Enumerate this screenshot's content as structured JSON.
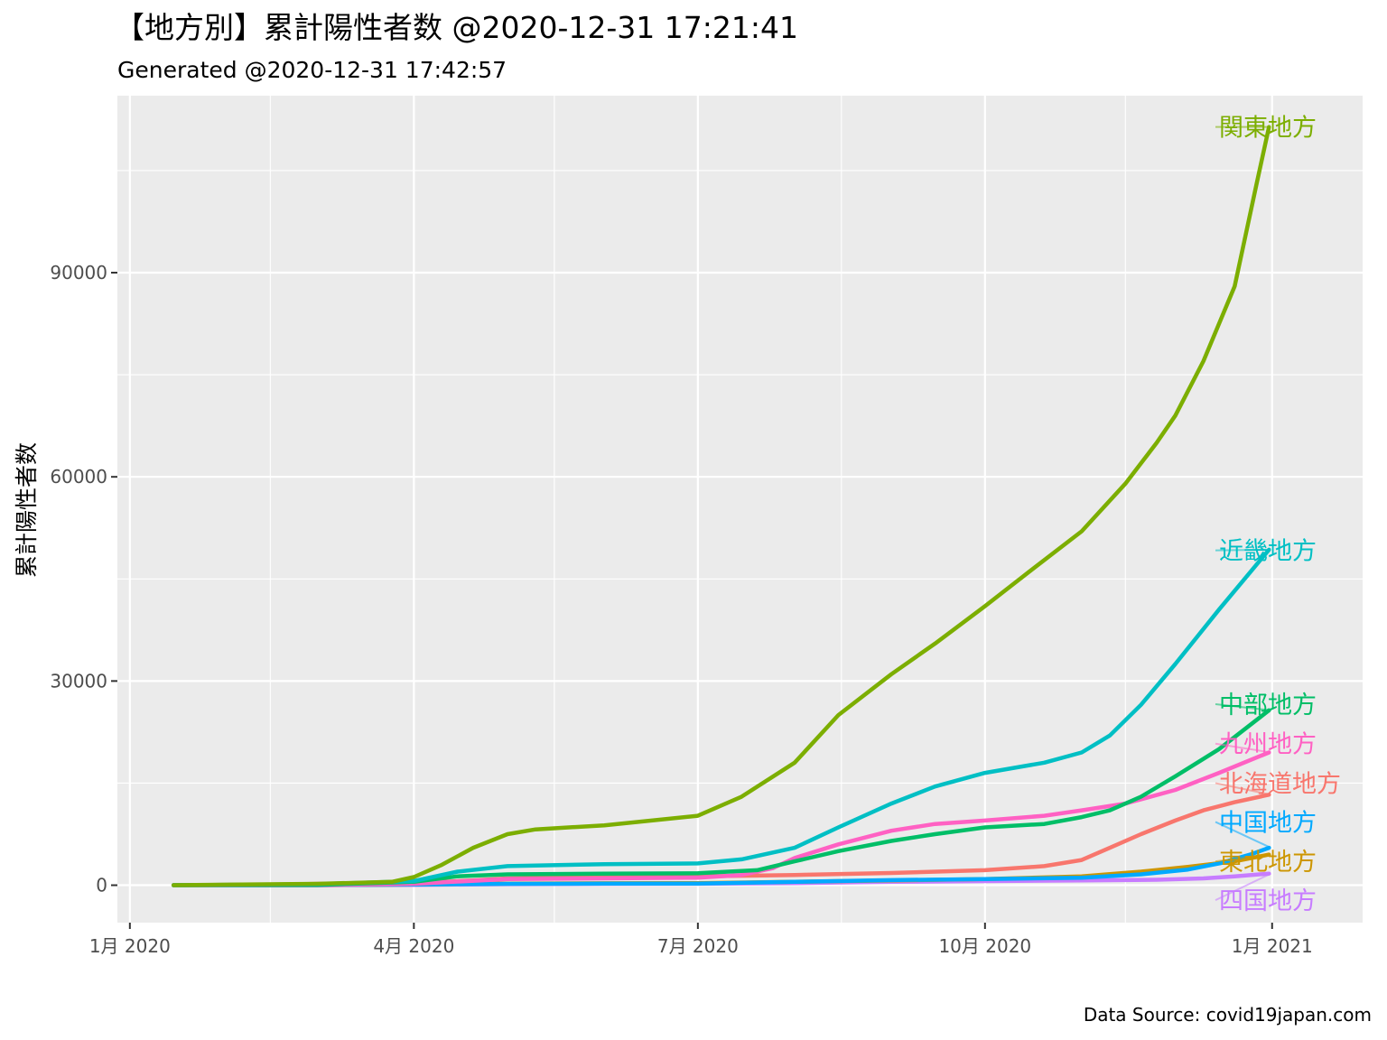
{
  "chart_data": {
    "type": "line",
    "title": "【地方別】累計陽性者数 @2020-12-31 17:21:41",
    "subtitle": "Generated @2020-12-31 17:42:57",
    "xlabel": "",
    "ylabel": "累計陽性者数",
    "caption": "Data Source: covid19japan.com",
    "x_unit": "date",
    "xlim": [
      "2019-12-28",
      "2021-01-30"
    ],
    "ylim": [
      -5500,
      116000
    ],
    "x_ticks": [
      {
        "date": "2020-01-01",
        "label": "1月 2020"
      },
      {
        "date": "2020-04-01",
        "label": "4月 2020"
      },
      {
        "date": "2020-07-01",
        "label": "7月 2020"
      },
      {
        "date": "2020-10-01",
        "label": "10月 2020"
      },
      {
        "date": "2021-01-01",
        "label": "1月 2021"
      }
    ],
    "x_minor_ticks": [
      "2020-02-15",
      "2020-05-16",
      "2020-08-16",
      "2020-11-15",
      "2021-02-15"
    ],
    "y_ticks": [
      0,
      30000,
      60000,
      90000
    ],
    "y_minor_ticks": [
      15000,
      45000,
      75000,
      105000
    ],
    "grid": true,
    "legend": "direct labels at right end of lines",
    "series": [
      {
        "name": "四国地方",
        "color": "#C77CFF",
        "label_value": -2200,
        "points": [
          [
            "2020-01-15",
            0
          ],
          [
            "2020-03-01",
            0
          ],
          [
            "2020-04-01",
            50
          ],
          [
            "2020-05-01",
            150
          ],
          [
            "2020-06-01",
            200
          ],
          [
            "2020-07-01",
            220
          ],
          [
            "2020-08-01",
            300
          ],
          [
            "2020-09-01",
            500
          ],
          [
            "2020-10-01",
            600
          ],
          [
            "2020-11-01",
            700
          ],
          [
            "2020-11-25",
            800
          ],
          [
            "2020-12-10",
            1000
          ],
          [
            "2020-12-20",
            1300
          ],
          [
            "2020-12-31",
            1700
          ]
        ]
      },
      {
        "name": "東北地方",
        "color": "#CD9600",
        "label_value": 3500,
        "points": [
          [
            "2020-01-15",
            0
          ],
          [
            "2020-03-01",
            0
          ],
          [
            "2020-04-01",
            100
          ],
          [
            "2020-05-01",
            250
          ],
          [
            "2020-06-01",
            280
          ],
          [
            "2020-07-01",
            300
          ],
          [
            "2020-08-01",
            500
          ],
          [
            "2020-09-01",
            700
          ],
          [
            "2020-10-01",
            900
          ],
          [
            "2020-11-01",
            1300
          ],
          [
            "2020-11-20",
            2000
          ],
          [
            "2020-12-05",
            2700
          ],
          [
            "2020-12-20",
            3500
          ],
          [
            "2020-12-31",
            4500
          ]
        ]
      },
      {
        "name": "中国地方",
        "color": "#00A9FF",
        "label_value": 9300,
        "points": [
          [
            "2020-01-15",
            0
          ],
          [
            "2020-03-01",
            0
          ],
          [
            "2020-04-01",
            100
          ],
          [
            "2020-05-01",
            200
          ],
          [
            "2020-06-01",
            230
          ],
          [
            "2020-07-01",
            250
          ],
          [
            "2020-08-01",
            500
          ],
          [
            "2020-09-01",
            750
          ],
          [
            "2020-10-01",
            900
          ],
          [
            "2020-11-01",
            1100
          ],
          [
            "2020-11-20",
            1600
          ],
          [
            "2020-12-05",
            2300
          ],
          [
            "2020-12-15",
            3200
          ],
          [
            "2020-12-25",
            4500
          ],
          [
            "2020-12-31",
            5500
          ]
        ]
      },
      {
        "name": "北海道地方",
        "color": "#F8766D",
        "label_value": 15000,
        "points": [
          [
            "2020-01-15",
            0
          ],
          [
            "2020-02-20",
            100
          ],
          [
            "2020-03-01",
            200
          ],
          [
            "2020-04-01",
            300
          ],
          [
            "2020-04-20",
            700
          ],
          [
            "2020-05-01",
            1000
          ],
          [
            "2020-06-01",
            1200
          ],
          [
            "2020-07-01",
            1300
          ],
          [
            "2020-08-01",
            1500
          ],
          [
            "2020-09-01",
            1800
          ],
          [
            "2020-10-01",
            2200
          ],
          [
            "2020-10-20",
            2800
          ],
          [
            "2020-11-01",
            3700
          ],
          [
            "2020-11-10",
            5500
          ],
          [
            "2020-11-20",
            7500
          ],
          [
            "2020-12-01",
            9500
          ],
          [
            "2020-12-10",
            11000
          ],
          [
            "2020-12-20",
            12200
          ],
          [
            "2020-12-31",
            13300
          ]
        ]
      },
      {
        "name": "九州地方",
        "color": "#FF61C3",
        "label_value": 20800,
        "points": [
          [
            "2020-01-15",
            0
          ],
          [
            "2020-03-01",
            0
          ],
          [
            "2020-04-01",
            200
          ],
          [
            "2020-05-01",
            900
          ],
          [
            "2020-06-01",
            1000
          ],
          [
            "2020-07-01",
            1100
          ],
          [
            "2020-07-15",
            1500
          ],
          [
            "2020-07-25",
            2500
          ],
          [
            "2020-08-01",
            4000
          ],
          [
            "2020-08-15",
            6000
          ],
          [
            "2020-09-01",
            8000
          ],
          [
            "2020-09-15",
            9000
          ],
          [
            "2020-10-01",
            9500
          ],
          [
            "2020-10-20",
            10200
          ],
          [
            "2020-11-01",
            11000
          ],
          [
            "2020-11-15",
            12000
          ],
          [
            "2020-12-01",
            14000
          ],
          [
            "2020-12-15",
            16500
          ],
          [
            "2020-12-31",
            19500
          ]
        ]
      },
      {
        "name": "中部地方",
        "color": "#00BE67",
        "label_value": 26600,
        "points": [
          [
            "2020-01-15",
            0
          ],
          [
            "2020-03-01",
            50
          ],
          [
            "2020-04-01",
            500
          ],
          [
            "2020-04-15",
            1300
          ],
          [
            "2020-05-01",
            1600
          ],
          [
            "2020-06-01",
            1700
          ],
          [
            "2020-07-01",
            1750
          ],
          [
            "2020-07-20",
            2200
          ],
          [
            "2020-08-01",
            3500
          ],
          [
            "2020-08-15",
            5000
          ],
          [
            "2020-09-01",
            6500
          ],
          [
            "2020-09-15",
            7500
          ],
          [
            "2020-10-01",
            8500
          ],
          [
            "2020-10-20",
            9000
          ],
          [
            "2020-11-01",
            10000
          ],
          [
            "2020-11-10",
            11000
          ],
          [
            "2020-11-20",
            13000
          ],
          [
            "2020-12-01",
            16000
          ],
          [
            "2020-12-15",
            20000
          ],
          [
            "2020-12-31",
            25700
          ]
        ]
      },
      {
        "name": "近畿地方",
        "color": "#00BFC4",
        "label_value": 49200,
        "points": [
          [
            "2020-01-15",
            0
          ],
          [
            "2020-03-01",
            150
          ],
          [
            "2020-04-01",
            600
          ],
          [
            "2020-04-15",
            2000
          ],
          [
            "2020-05-01",
            2800
          ],
          [
            "2020-06-01",
            3100
          ],
          [
            "2020-07-01",
            3200
          ],
          [
            "2020-07-15",
            3800
          ],
          [
            "2020-08-01",
            5500
          ],
          [
            "2020-08-15",
            8500
          ],
          [
            "2020-09-01",
            12000
          ],
          [
            "2020-09-15",
            14500
          ],
          [
            "2020-10-01",
            16500
          ],
          [
            "2020-10-20",
            18000
          ],
          [
            "2020-11-01",
            19500
          ],
          [
            "2020-11-10",
            22000
          ],
          [
            "2020-11-20",
            26500
          ],
          [
            "2020-12-01",
            32500
          ],
          [
            "2020-12-15",
            40500
          ],
          [
            "2020-12-31",
            49300
          ]
        ]
      },
      {
        "name": "関東地方",
        "color": "#7CAE00",
        "label_value": 111400,
        "points": [
          [
            "2020-01-15",
            0
          ],
          [
            "2020-03-01",
            200
          ],
          [
            "2020-03-25",
            500
          ],
          [
            "2020-04-01",
            1200
          ],
          [
            "2020-04-10",
            3000
          ],
          [
            "2020-04-20",
            5500
          ],
          [
            "2020-05-01",
            7500
          ],
          [
            "2020-05-10",
            8200
          ],
          [
            "2020-06-01",
            8800
          ],
          [
            "2020-07-01",
            10200
          ],
          [
            "2020-07-15",
            13000
          ],
          [
            "2020-08-01",
            18000
          ],
          [
            "2020-08-15",
            25000
          ],
          [
            "2020-09-01",
            31000
          ],
          [
            "2020-09-15",
            35500
          ],
          [
            "2020-10-01",
            41000
          ],
          [
            "2020-10-15",
            46000
          ],
          [
            "2020-11-01",
            52000
          ],
          [
            "2020-11-15",
            59000
          ],
          [
            "2020-11-25",
            65000
          ],
          [
            "2020-12-01",
            69000
          ],
          [
            "2020-12-10",
            77000
          ],
          [
            "2020-12-20",
            88000
          ],
          [
            "2020-12-27",
            103000
          ],
          [
            "2020-12-31",
            111400
          ]
        ]
      }
    ]
  }
}
